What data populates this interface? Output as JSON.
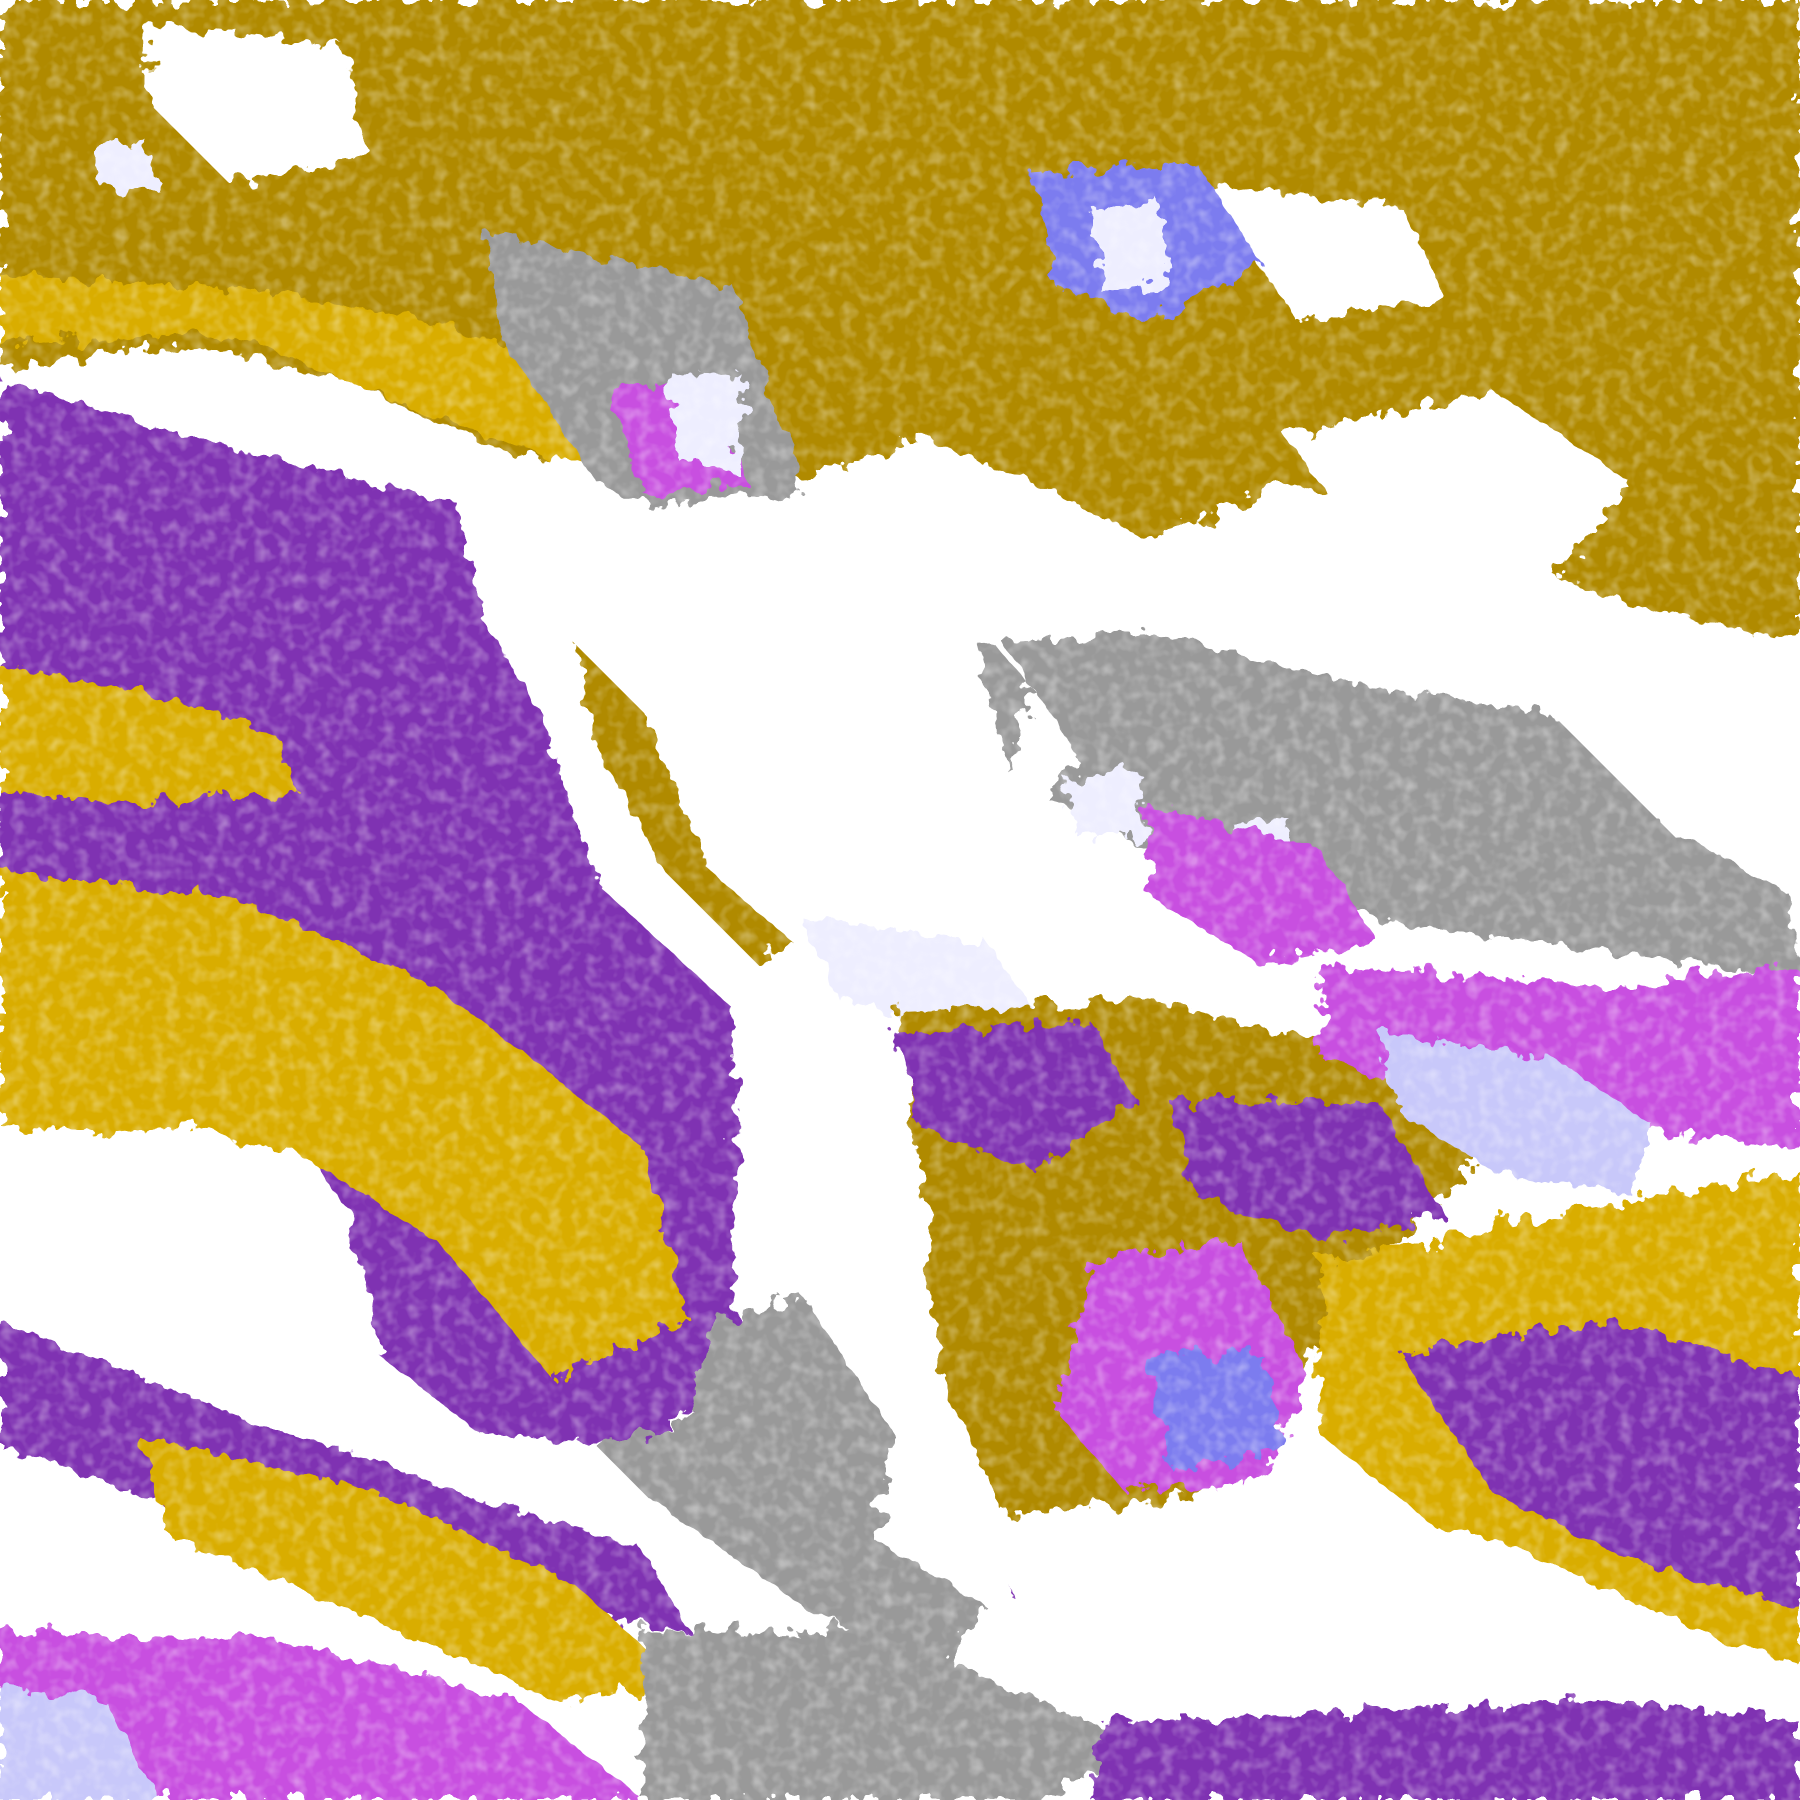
{
  "map": {
    "palette": {
      "clear": "#ffffff",
      "gold_dark": "#b08a00",
      "gold_light": "#d9ad00",
      "purple": "#7f33b2",
      "magenta": "#c84fe0",
      "periwinkle": "#7b7bef",
      "lavender": "#c8c8fa",
      "pale_lavender": "#eeeeff",
      "gray": "#999999"
    }
  }
}
